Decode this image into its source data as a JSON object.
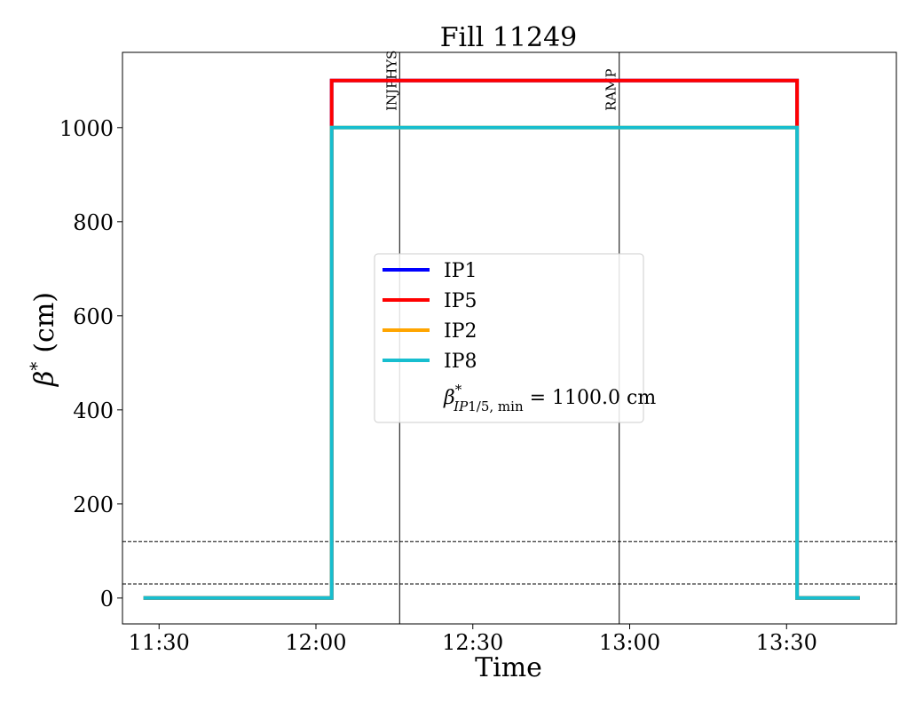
{
  "chart_data": {
    "type": "line",
    "title": "Fill 11249",
    "xlabel": "Time",
    "ylabel_symbol": "β",
    "ylabel_sup": "*",
    "ylabel_unit": "(cm)",
    "xlim": [
      "11:23",
      "13:51"
    ],
    "ylim": [
      -55,
      1160
    ],
    "x_ticks": [
      "11:30",
      "12:00",
      "12:30",
      "13:00",
      "13:30"
    ],
    "y_ticks": [
      0,
      200,
      400,
      600,
      800,
      1000
    ],
    "grid": false,
    "legend_position": "center",
    "series": [
      {
        "name": "IP1",
        "color": "#0000ff",
        "x": [
          "11:27",
          "12:03",
          "12:03",
          "13:32",
          "13:32",
          "13:44"
        ],
        "y": [
          0,
          0,
          1100,
          1100,
          0,
          0
        ]
      },
      {
        "name": "IP5",
        "color": "#ff0000",
        "x": [
          "11:27",
          "12:03",
          "12:03",
          "13:32",
          "13:32",
          "13:44"
        ],
        "y": [
          0,
          0,
          1100,
          1100,
          0,
          0
        ]
      },
      {
        "name": "IP2",
        "color": "#ffa500",
        "x": [
          "11:27",
          "12:03",
          "12:03",
          "13:32",
          "13:32",
          "13:44"
        ],
        "y": [
          0,
          0,
          1000,
          1000,
          0,
          0
        ]
      },
      {
        "name": "IP8",
        "color": "#17becf",
        "x": [
          "11:27",
          "12:03",
          "12:03",
          "13:32",
          "13:32",
          "13:44"
        ],
        "y": [
          0,
          0,
          1000,
          1000,
          0,
          0
        ]
      }
    ],
    "legend_extra": {
      "beta": "β",
      "sup": "*",
      "sub_italic": "IP",
      "sub_rest": "1/5, min",
      "value": " = 1100.0 cm"
    },
    "hlines": [
      {
        "y": 30,
        "style": "dashed"
      },
      {
        "y": 120,
        "style": "dashed"
      }
    ],
    "vlines": [
      {
        "x": "12:16",
        "label": "INJPHYS"
      },
      {
        "x": "12:58",
        "label": "RAMP"
      }
    ]
  }
}
